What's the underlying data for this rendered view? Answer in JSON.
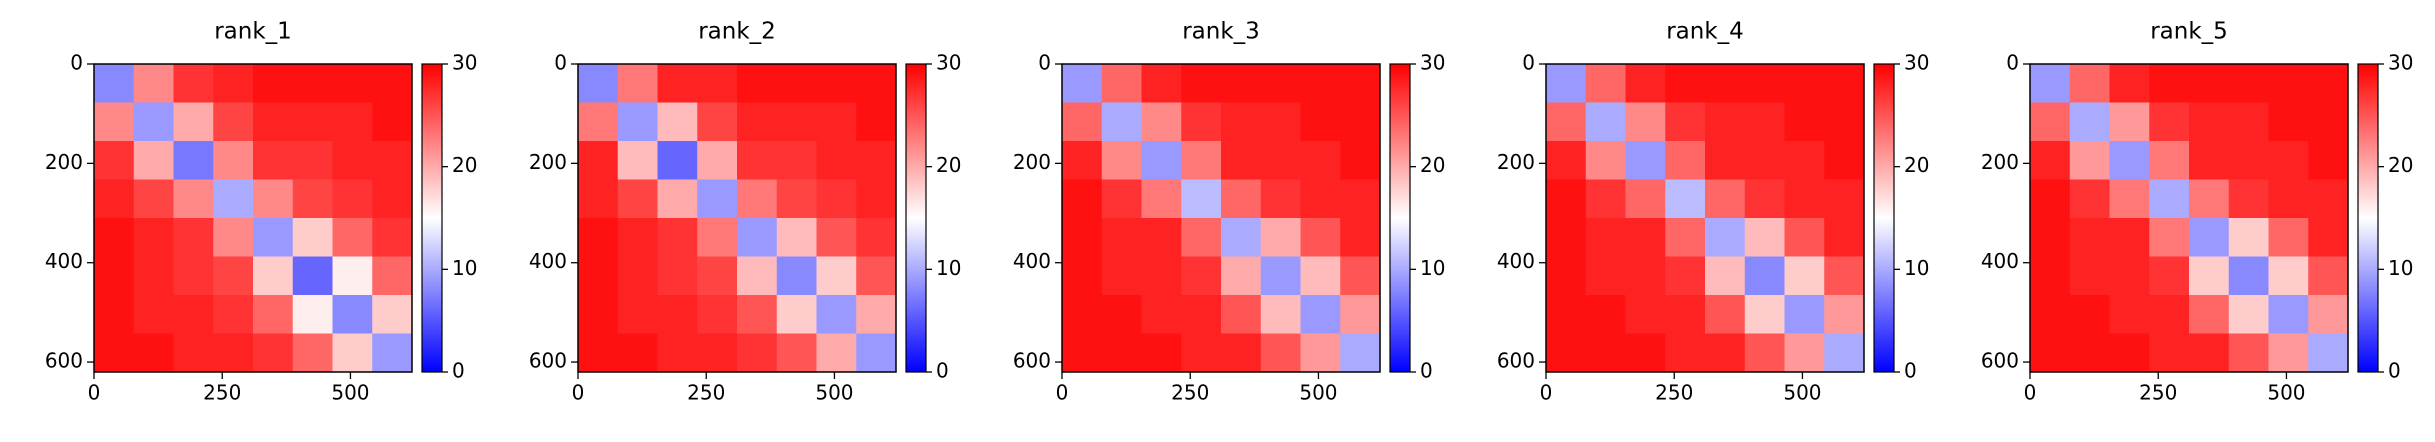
{
  "chart_data": [
    {
      "type": "heatmap",
      "title": "rank_1",
      "xlim": [
        0,
        620
      ],
      "ylim": [
        620,
        0
      ],
      "xticks": [
        0,
        250,
        500
      ],
      "yticks": [
        0,
        200,
        400,
        600
      ],
      "cmap": [
        "#0000ff",
        "#ffffff",
        "#ff0000"
      ],
      "clim": [
        0,
        30
      ],
      "cticks": [
        0,
        10,
        20,
        30
      ],
      "z": [
        [
          8,
          22,
          27,
          28,
          29,
          29,
          29,
          29
        ],
        [
          22,
          9,
          20,
          26,
          28,
          28,
          28,
          29
        ],
        [
          27,
          20,
          7,
          22,
          27,
          27,
          28,
          28
        ],
        [
          28,
          26,
          22,
          10,
          22,
          26,
          27,
          28
        ],
        [
          29,
          28,
          27,
          22,
          9,
          18,
          24,
          27
        ],
        [
          29,
          28,
          27,
          26,
          18,
          6,
          16,
          24
        ],
        [
          29,
          28,
          28,
          27,
          24,
          16,
          8,
          18
        ],
        [
          29,
          29,
          28,
          28,
          27,
          24,
          18,
          9
        ]
      ]
    },
    {
      "type": "heatmap",
      "title": "rank_2",
      "xlim": [
        0,
        620
      ],
      "ylim": [
        620,
        0
      ],
      "xticks": [
        0,
        250,
        500
      ],
      "yticks": [
        0,
        200,
        400,
        600
      ],
      "cmap": [
        "#0000ff",
        "#ffffff",
        "#ff0000"
      ],
      "clim": [
        0,
        30
      ],
      "cticks": [
        0,
        10,
        20,
        30
      ],
      "z": [
        [
          8,
          23,
          28,
          28,
          29,
          29,
          29,
          29
        ],
        [
          23,
          9,
          19,
          26,
          28,
          28,
          28,
          29
        ],
        [
          28,
          19,
          6,
          20,
          27,
          27,
          28,
          28
        ],
        [
          28,
          26,
          20,
          9,
          23,
          26,
          27,
          28
        ],
        [
          29,
          28,
          27,
          23,
          9,
          19,
          25,
          27
        ],
        [
          29,
          28,
          27,
          26,
          19,
          8,
          18,
          25
        ],
        [
          29,
          28,
          28,
          27,
          25,
          18,
          9,
          20
        ],
        [
          29,
          29,
          28,
          28,
          27,
          25,
          20,
          9
        ]
      ]
    },
    {
      "type": "heatmap",
      "title": "rank_3",
      "xlim": [
        0,
        620
      ],
      "ylim": [
        620,
        0
      ],
      "xticks": [
        0,
        250,
        500
      ],
      "yticks": [
        0,
        200,
        400,
        600
      ],
      "cmap": [
        "#0000ff",
        "#ffffff",
        "#ff0000"
      ],
      "clim": [
        0,
        30
      ],
      "cticks": [
        0,
        10,
        20,
        30
      ],
      "z": [
        [
          9,
          24,
          28,
          29,
          29,
          29,
          29,
          29
        ],
        [
          24,
          10,
          22,
          27,
          28,
          28,
          29,
          29
        ],
        [
          28,
          22,
          9,
          23,
          28,
          28,
          28,
          29
        ],
        [
          29,
          27,
          23,
          11,
          24,
          27,
          28,
          28
        ],
        [
          29,
          28,
          28,
          24,
          10,
          20,
          25,
          28
        ],
        [
          29,
          28,
          28,
          27,
          20,
          9,
          19,
          25
        ],
        [
          29,
          29,
          28,
          28,
          25,
          19,
          9,
          21
        ],
        [
          29,
          29,
          29,
          28,
          28,
          25,
          21,
          10
        ]
      ]
    },
    {
      "type": "heatmap",
      "title": "rank_4",
      "xlim": [
        0,
        620
      ],
      "ylim": [
        620,
        0
      ],
      "xticks": [
        0,
        250,
        500
      ],
      "yticks": [
        0,
        200,
        400,
        600
      ],
      "cmap": [
        "#0000ff",
        "#ffffff",
        "#ff0000"
      ],
      "clim": [
        0,
        30
      ],
      "cticks": [
        0,
        10,
        20,
        30
      ],
      "z": [
        [
          9,
          24,
          28,
          29,
          29,
          29,
          29,
          29
        ],
        [
          24,
          10,
          22,
          27,
          28,
          28,
          29,
          29
        ],
        [
          28,
          22,
          9,
          24,
          28,
          28,
          28,
          29
        ],
        [
          29,
          27,
          24,
          11,
          24,
          27,
          28,
          28
        ],
        [
          29,
          28,
          28,
          24,
          10,
          19,
          25,
          28
        ],
        [
          29,
          28,
          28,
          27,
          19,
          8,
          18,
          25
        ],
        [
          29,
          29,
          28,
          28,
          25,
          18,
          9,
          21
        ],
        [
          29,
          29,
          29,
          28,
          28,
          25,
          21,
          10
        ]
      ]
    },
    {
      "type": "heatmap",
      "title": "rank_5",
      "xlim": [
        0,
        620
      ],
      "ylim": [
        620,
        0
      ],
      "xticks": [
        0,
        250,
        500
      ],
      "yticks": [
        0,
        200,
        400,
        600
      ],
      "cmap": [
        "#0000ff",
        "#ffffff",
        "#ff0000"
      ],
      "clim": [
        0,
        30
      ],
      "cticks": [
        0,
        10,
        20,
        30
      ],
      "z": [
        [
          9,
          24,
          28,
          29,
          29,
          29,
          29,
          29
        ],
        [
          24,
          10,
          21,
          27,
          28,
          28,
          29,
          29
        ],
        [
          28,
          21,
          9,
          23,
          28,
          28,
          28,
          29
        ],
        [
          29,
          27,
          23,
          10,
          23,
          27,
          28,
          28
        ],
        [
          29,
          28,
          28,
          23,
          9,
          18,
          24,
          28
        ],
        [
          29,
          28,
          28,
          27,
          18,
          8,
          18,
          25
        ],
        [
          29,
          29,
          28,
          28,
          24,
          18,
          9,
          21
        ],
        [
          29,
          29,
          29,
          28,
          28,
          25,
          21,
          10
        ]
      ]
    }
  ]
}
